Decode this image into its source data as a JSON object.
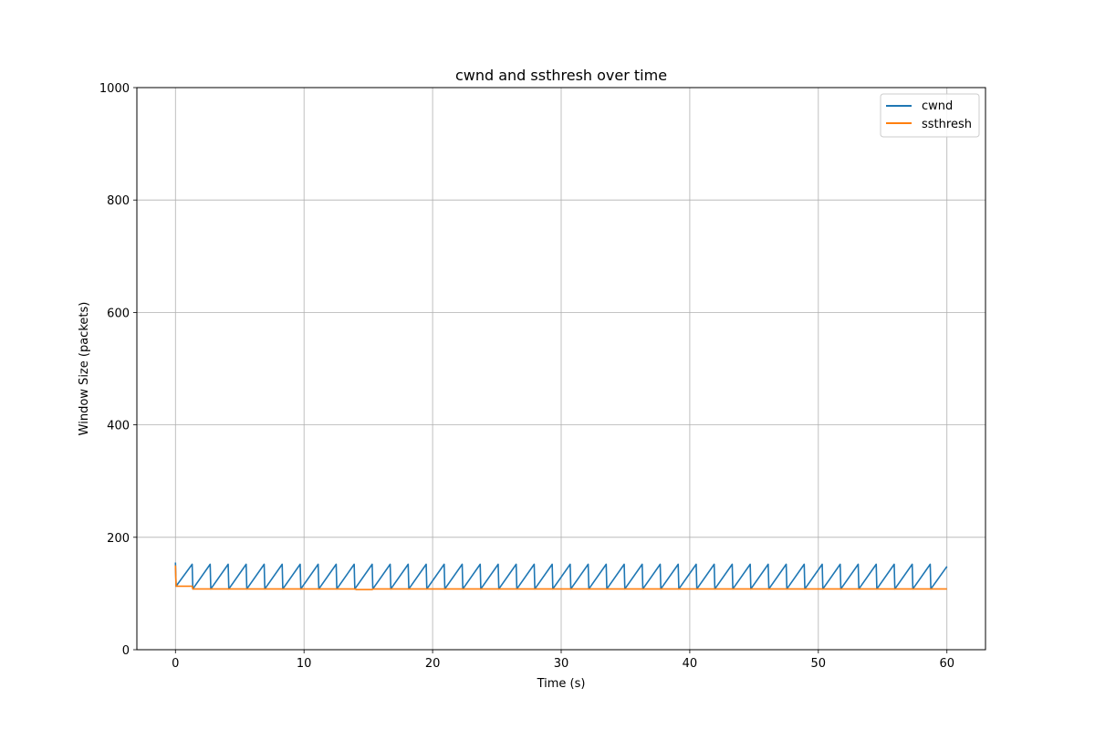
{
  "chart_data": {
    "type": "line",
    "title": "cwnd and ssthresh over time",
    "xlabel": "Time (s)",
    "ylabel": "Window Size (packets)",
    "xlim": [
      -3,
      63
    ],
    "ylim": [
      0,
      1000
    ],
    "x_ticks": [
      0,
      10,
      20,
      30,
      40,
      50,
      60
    ],
    "y_ticks": [
      0,
      200,
      400,
      600,
      800,
      1000
    ],
    "grid": true,
    "legend_position": "upper right",
    "series": [
      {
        "name": "cwnd",
        "color": "#1f77b4",
        "x": [
          0.0,
          0.05,
          1.3,
          1.35,
          2.7,
          2.75,
          4.1,
          4.15,
          5.5,
          5.55,
          6.9,
          6.95,
          8.3,
          8.35,
          9.7,
          9.75,
          11.1,
          11.15,
          12.5,
          12.55,
          13.9,
          13.95,
          15.3,
          15.35,
          16.7,
          16.75,
          18.1,
          18.15,
          19.5,
          19.55,
          20.9,
          20.95,
          22.3,
          22.35,
          23.7,
          23.75,
          25.1,
          25.15,
          26.5,
          26.55,
          27.9,
          27.95,
          29.3,
          29.35,
          30.7,
          30.75,
          32.1,
          32.15,
          33.5,
          33.55,
          34.9,
          34.95,
          36.3,
          36.35,
          37.7,
          37.75,
          39.1,
          39.15,
          40.5,
          40.55,
          41.9,
          41.95,
          43.3,
          43.35,
          44.7,
          44.75,
          46.1,
          46.15,
          47.5,
          47.55,
          48.9,
          48.95,
          50.3,
          50.35,
          51.7,
          51.75,
          53.1,
          53.15,
          54.5,
          54.55,
          55.9,
          55.95,
          57.3,
          57.35,
          58.7,
          58.75,
          60.0
        ],
        "values": [
          155,
          113,
          152,
          108,
          152,
          108,
          152,
          108,
          152,
          108,
          152,
          108,
          152,
          108,
          152,
          108,
          152,
          108,
          152,
          108,
          152,
          108,
          152,
          108,
          152,
          108,
          152,
          108,
          152,
          108,
          152,
          108,
          152,
          108,
          152,
          108,
          152,
          108,
          152,
          108,
          152,
          108,
          152,
          108,
          152,
          108,
          152,
          108,
          152,
          108,
          152,
          108,
          152,
          108,
          152,
          108,
          152,
          108,
          152,
          108,
          152,
          108,
          152,
          108,
          152,
          108,
          152,
          108,
          152,
          108,
          152,
          108,
          152,
          108,
          152,
          108,
          152,
          108,
          152,
          108,
          152,
          108,
          152,
          108,
          152,
          108,
          148
        ]
      },
      {
        "name": "ssthresh",
        "color": "#ff7f0e",
        "x": [
          0.0,
          0.05,
          1.3,
          1.35,
          14.0,
          14.05,
          15.3,
          15.35,
          60.0
        ],
        "values": [
          150,
          113,
          113,
          108,
          108,
          107,
          107,
          108,
          108
        ]
      }
    ]
  }
}
